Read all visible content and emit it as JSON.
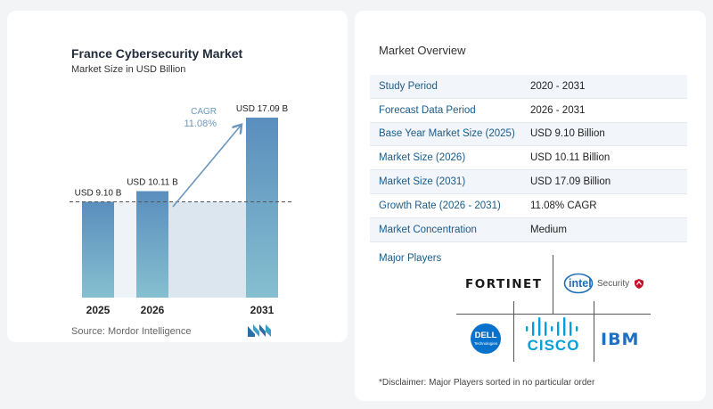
{
  "chart_data": {
    "type": "bar",
    "title": "France Cybersecurity Market",
    "subtitle": "Market Size in USD Billion",
    "categories": [
      "2025",
      "2026",
      "2031"
    ],
    "values": [
      9.1,
      10.11,
      17.09
    ],
    "value_labels": [
      "USD 9.10 B",
      "USD 10.11 B",
      "USD 17.09 B"
    ],
    "ylim": [
      0,
      17.09
    ],
    "cagr_label": "CAGR",
    "cagr_value": "11.08%",
    "colors": {
      "bar": "#5a8fbb",
      "bar_highlight": "#4f85b3",
      "arrow": "#6b97bd",
      "band": "#dbe6ef",
      "dashed": "#555555"
    }
  },
  "source": "Source:  Mordor Intelligence",
  "overview": {
    "title": "Market Overview",
    "rows": [
      {
        "label": "Study Period",
        "value": "2020 - 2031"
      },
      {
        "label": "Forecast Data Period",
        "value": "2026 - 2031"
      },
      {
        "label": "Base Year Market Size (2025)",
        "value": "USD 9.10 Billion"
      },
      {
        "label": "Market Size (2026)",
        "value": "USD 10.11 Billion"
      },
      {
        "label": "Market Size (2031)",
        "value": "USD 17.09 Billion"
      },
      {
        "label": "Growth Rate (2026 - 2031)",
        "value": "11.08% CAGR"
      },
      {
        "label": "Market Concentration",
        "value": "Medium"
      }
    ]
  },
  "players": {
    "title": "Major Players",
    "fortinet": "FORTINET",
    "intel": "intel",
    "intel_security": "Security",
    "dell_1": "DELL",
    "dell_2": "Technologies",
    "cisco": "CISCO",
    "ibm": "IBM"
  },
  "disclaimer": "*Disclaimer: Major Players sorted in no particular order"
}
